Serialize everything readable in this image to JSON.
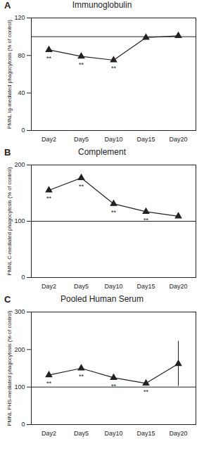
{
  "chart_data": [
    {
      "type": "line",
      "panel": "A",
      "title": "Immunoglobulin",
      "y_label": "PMNL Ig-mediated phagocytosis (% of control)",
      "categories": [
        "Day2",
        "Day5",
        "Day10",
        "Day15",
        "Day20"
      ],
      "values": [
        86,
        79,
        75,
        99,
        101
      ],
      "reference_line": 100,
      "annotations": [
        {
          "x": "Day2",
          "text": "**"
        },
        {
          "x": "Day5",
          "text": "**"
        },
        {
          "x": "Day10",
          "text": "**"
        }
      ],
      "ylim": [
        0,
        120
      ],
      "yticks": [
        0,
        40,
        80,
        120
      ],
      "color": "#222222",
      "marker": "triangle",
      "grid": false
    },
    {
      "type": "line",
      "panel": "B",
      "title": "Complement",
      "y_label": "PMNL C-mediated phagocytosis (% of control)",
      "categories": [
        "Day2",
        "Day5",
        "Day10",
        "Day15",
        "Day20"
      ],
      "values": [
        155,
        177,
        131,
        117,
        109
      ],
      "reference_line": 100,
      "annotations": [
        {
          "x": "Day2",
          "text": "**"
        },
        {
          "x": "Day5",
          "text": "**"
        },
        {
          "x": "Day10",
          "text": "**"
        },
        {
          "x": "Day15",
          "text": "**"
        }
      ],
      "ylim": [
        0,
        200
      ],
      "yticks": [
        0,
        100,
        200
      ],
      "color": "#222222",
      "marker": "triangle",
      "grid": false
    },
    {
      "type": "line",
      "panel": "C",
      "title": "Pooled Human Serum",
      "y_label": "PMNL PHS-mediated phagocytosis (% of control)",
      "categories": [
        "Day2",
        "Day5",
        "Day10",
        "Day15",
        "Day20"
      ],
      "values": [
        132,
        150,
        125,
        110,
        162
      ],
      "error": [
        null,
        null,
        null,
        null,
        60
      ],
      "reference_line": 100,
      "annotations": [
        {
          "x": "Day2",
          "text": "**"
        },
        {
          "x": "Day5",
          "text": "**"
        },
        {
          "x": "Day10",
          "text": "**"
        },
        {
          "x": "Day15",
          "text": "**"
        }
      ],
      "ylim": [
        0,
        300
      ],
      "yticks": [
        0,
        100,
        200,
        300
      ],
      "color": "#222222",
      "marker": "triangle",
      "grid": false
    }
  ]
}
